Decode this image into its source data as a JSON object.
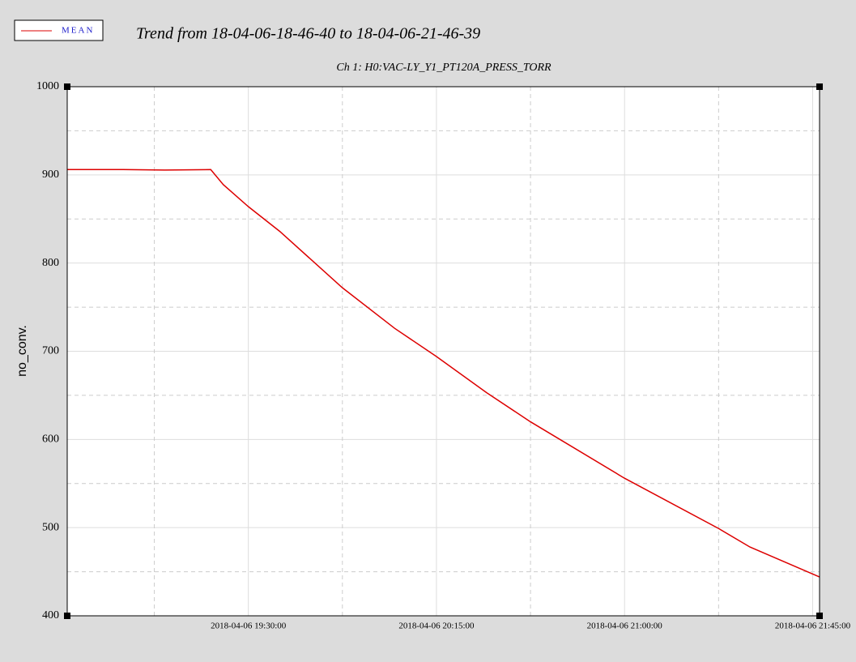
{
  "chart_data": {
    "type": "line",
    "title": "Trend from 18-04-06-18-46-40 to 18-04-06-21-46-39",
    "subtitle": "Ch 1: H0:VAC-LY_Y1_PT120A_PRESS_TORR",
    "y_label": "no_conv.",
    "x": [
      "2018-04-06 18:46:40",
      "2018-04-06 19:00:00",
      "2018-04-06 19:10:00",
      "2018-04-06 19:21:00",
      "2018-04-06 19:24:00",
      "2018-04-06 19:30:00",
      "2018-04-06 19:37:30",
      "2018-04-06 19:52:30",
      "2018-04-06 20:05:00",
      "2018-04-06 20:15:00",
      "2018-04-06 20:27:00",
      "2018-04-06 20:37:30",
      "2018-04-06 21:00:00",
      "2018-04-06 21:22:30",
      "2018-04-06 21:30:00",
      "2018-04-06 21:46:39"
    ],
    "series": [
      {
        "name": "MEAN",
        "color": "#dd0000",
        "values": [
          906,
          906,
          905.5,
          906,
          889,
          864,
          836,
          772,
          726,
          694,
          653,
          620,
          556,
          499,
          478,
          444
        ]
      }
    ],
    "xlim": [
      "2018-04-06 18:46:40",
      "2018-04-06 21:46:39"
    ],
    "xticks": [
      "2018-04-06 19:30:00",
      "2018-04-06 20:15:00",
      "2018-04-06 21:00:00",
      "2018-04-06 21:45:00"
    ],
    "minor_xticks": [
      "2018-04-06 19:07:30",
      "2018-04-06 19:52:30",
      "2018-04-06 20:37:30",
      "2018-04-06 21:22:30"
    ],
    "ylim": [
      400,
      1000
    ],
    "yticks": [
      400,
      500,
      600,
      700,
      800,
      900,
      1000
    ],
    "minor_yticks": [
      450,
      550,
      650,
      750,
      850,
      950
    ],
    "grid": true
  }
}
